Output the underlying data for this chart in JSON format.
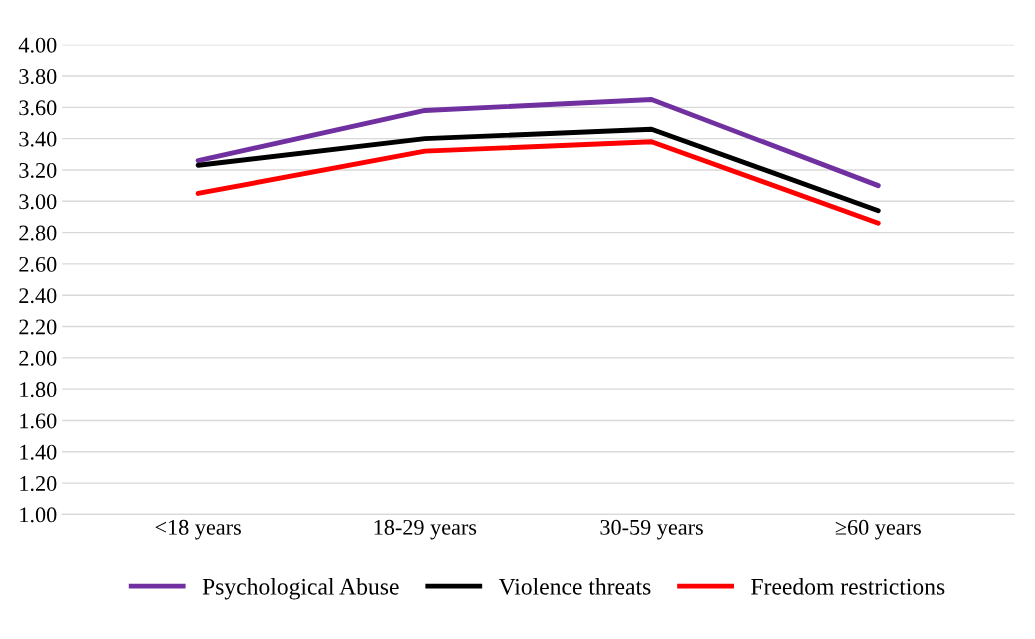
{
  "chart_data": {
    "type": "line",
    "categories": [
      "<18 years",
      "18-29 years",
      "30-59 years",
      "≥60 years"
    ],
    "series": [
      {
        "name": "Psychological Abuse",
        "color": "#7030a0",
        "values": [
          3.26,
          3.58,
          3.65,
          3.1
        ]
      },
      {
        "name": "Violence threats",
        "color": "#000000",
        "values": [
          3.23,
          3.4,
          3.46,
          2.94
        ]
      },
      {
        "name": "Freedom restrictions",
        "color": "#ff0000",
        "values": [
          3.05,
          3.32,
          3.38,
          2.86
        ]
      }
    ],
    "ylim": [
      1.0,
      4.0
    ],
    "yticks": [
      {
        "value": 1.0,
        "label": "1.00"
      },
      {
        "value": 1.2,
        "label": "1.20"
      },
      {
        "value": 1.4,
        "label": "1.40"
      },
      {
        "value": 1.6,
        "label": "1.60"
      },
      {
        "value": 1.8,
        "label": "1.80"
      },
      {
        "value": 2.0,
        "label": "2.00"
      },
      {
        "value": 2.2,
        "label": "2.20"
      },
      {
        "value": 2.4,
        "label": "2.40"
      },
      {
        "value": 2.6,
        "label": "2.60"
      },
      {
        "value": 2.8,
        "label": "2.80"
      },
      {
        "value": 3.0,
        "label": "3.00"
      },
      {
        "value": 3.2,
        "label": "3.20"
      },
      {
        "value": 3.4,
        "label": "3.40"
      },
      {
        "value": 3.6,
        "label": "3.60"
      },
      {
        "value": 3.8,
        "label": "3.80"
      },
      {
        "value": 4.0,
        "label": "4.00"
      }
    ],
    "grid": "y",
    "legend": "bottom",
    "marker": "none",
    "line_style": "solid"
  }
}
